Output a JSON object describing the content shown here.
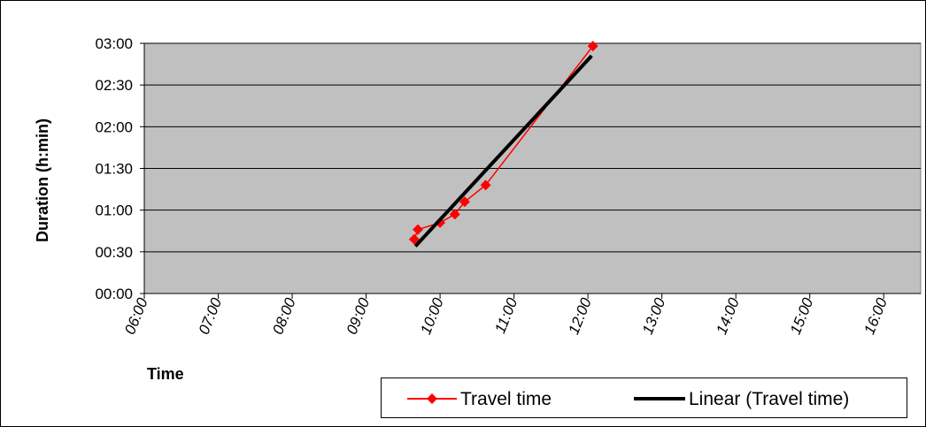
{
  "chart_data": {
    "type": "line",
    "xlabel": "Time",
    "ylabel": "Duration (h:min)",
    "x_ticks": [
      "06:00",
      "07:00",
      "08:00",
      "09:00",
      "10:00",
      "11:00",
      "12:00",
      "13:00",
      "14:00",
      "15:00",
      "16:00"
    ],
    "y_ticks": [
      "00:00",
      "00:30",
      "01:00",
      "01:30",
      "02:00",
      "02:30",
      "03:00"
    ],
    "xlim": [
      "06:00",
      "16:30"
    ],
    "ylim": [
      "00:00",
      "03:00"
    ],
    "grid": "horizontal",
    "legend_position": "bottom-right",
    "series": [
      {
        "name": "Travel time",
        "color": "#ff0000",
        "marker": "diamond",
        "x": [
          "09:39",
          "09:42",
          "10:00",
          "10:12",
          "10:20",
          "10:37",
          "12:04"
        ],
        "y": [
          "00:39",
          "00:46",
          "00:51",
          "00:57",
          "01:06",
          "01:18",
          "02:58"
        ]
      },
      {
        "name": "Linear (Travel time)",
        "color": "#000000",
        "trendline": true,
        "x": [
          "09:40",
          "12:03"
        ],
        "y": [
          "00:34",
          "02:51"
        ]
      }
    ],
    "plot_background": "#c0c0c0"
  }
}
